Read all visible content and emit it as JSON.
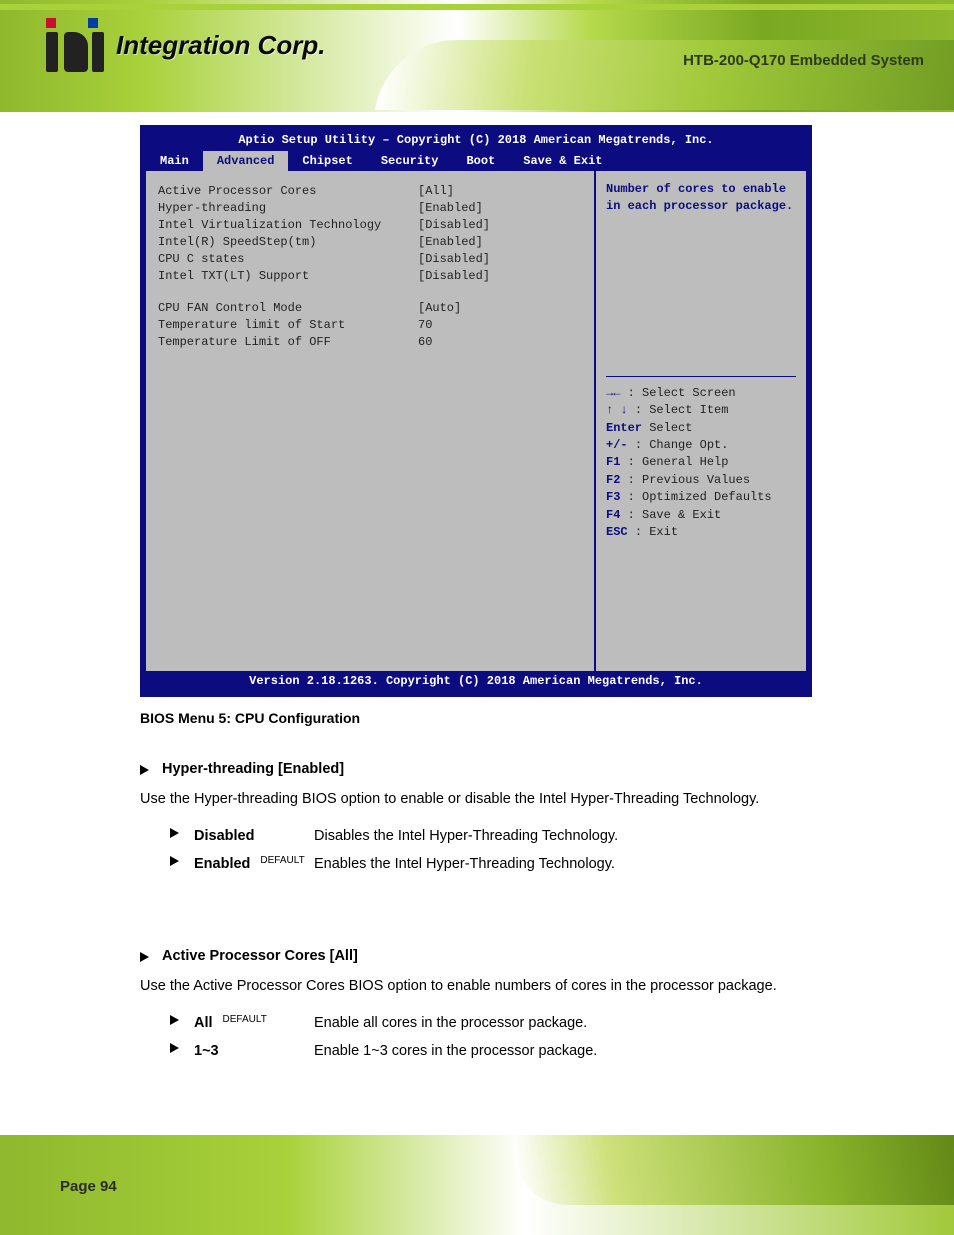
{
  "page": {
    "number": "Page 94",
    "doc_title": "HTB-200-Q170 Embedded System"
  },
  "logo": {
    "text": "Integration Corp."
  },
  "bios": {
    "title": "Aptio Setup Utility – Copyright (C) 2018 American Megatrends, Inc.",
    "footer": "Version 2.18.1263. Copyright (C) 2018 American Megatrends, Inc.",
    "tabs": [
      "Main",
      "Advanced",
      "Chipset",
      "Security",
      "Boot",
      "Save & Exit"
    ],
    "active_tab": "Advanced",
    "settings": [
      {
        "label": "Active Processor Cores",
        "value": "[All]"
      },
      {
        "label": "Hyper-threading",
        "value": "[Enabled]"
      },
      {
        "label": "Intel Virtualization Technology",
        "value": "[Disabled]"
      },
      {
        "label": "Intel(R) SpeedStep(tm)",
        "value": "[Enabled]"
      },
      {
        "label": "CPU C states",
        "value": "[Disabled]"
      },
      {
        "label": "Intel TXT(LT) Support",
        "value": "[Disabled]"
      }
    ],
    "info": [
      {
        "label": "CPU FAN Control Mode",
        "value": "[Auto]"
      },
      {
        "label": "Temperature limit of Start",
        "value": "70"
      },
      {
        "label": "Temperature Limit of OFF",
        "value": "60"
      }
    ],
    "help_desc": "Number of cores to enable in each processor package.",
    "nav": [
      {
        "key": "→←",
        "desc": ": Select Screen"
      },
      {
        "key": "↑ ↓",
        "desc": ": Select Item"
      },
      {
        "key": "Enter",
        "desc": "Select"
      },
      {
        "key": "+/-",
        "desc": ": Change Opt."
      },
      {
        "key": "F1",
        "desc": ": General Help"
      },
      {
        "key": "F2",
        "desc": ": Previous Values"
      },
      {
        "key": "F3",
        "desc": ": Optimized Defaults"
      },
      {
        "key": "F4",
        "desc": ": Save & Exit"
      },
      {
        "key": "ESC",
        "desc": ": Exit"
      }
    ]
  },
  "caption": "BIOS Menu 5: CPU Configuration",
  "section1": {
    "title": "Hyper-threading [Enabled]",
    "desc": "Use the Hyper-threading BIOS option to enable or disable the Intel Hyper-Threading Technology.",
    "opts": [
      {
        "name": "Disabled",
        "def": "",
        "desc": "Disables the Intel Hyper-Threading Technology."
      },
      {
        "name": "Enabled",
        "def": "DEFAULT",
        "desc": "Enables the Intel Hyper-Threading Technology."
      }
    ]
  },
  "section2": {
    "title": "Active Processor Cores [All]",
    "desc": "Use the Active Processor Cores BIOS option to enable numbers of cores in the processor package.",
    "opts": [
      {
        "name": "All",
        "def": "DEFAULT",
        "desc": "Enable all cores in the processor package."
      },
      {
        "name": "1~3",
        "def": "",
        "desc": "Enable 1~3 cores in the processor package."
      }
    ]
  },
  "colors": {
    "bios_bg": "#0c0c80",
    "bios_panel": "#bdbdbd",
    "accent_green": "#8fb82e",
    "text": "#000000",
    "nav_key": "#0c0c80"
  }
}
